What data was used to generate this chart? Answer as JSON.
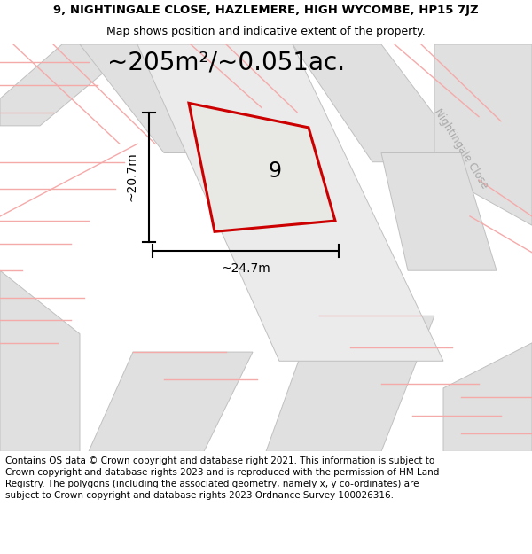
{
  "title_line1": "9, NIGHTINGALE CLOSE, HAZLEMERE, HIGH WYCOMBE, HP15 7JZ",
  "title_line2": "Map shows position and indicative extent of the property.",
  "area_text": "~205m²/~0.051ac.",
  "plot_number": "9",
  "dim_width": "~24.7m",
  "dim_height": "~20.7m",
  "street_label": "Nightingale Close",
  "footer_text": "Contains OS data © Crown copyright and database right 2021. This information is subject to Crown copyright and database rights 2023 and is reproduced with the permission of HM Land Registry. The polygons (including the associated geometry, namely x, y co-ordinates) are subject to Crown copyright and database rights 2023 Ordnance Survey 100026316.",
  "bg_color": "#f2f2ee",
  "road_fill": "#e0e0e0",
  "road_stroke": "#c0c0c0",
  "pink_line_color": "#f5aaaa",
  "red_plot_color": "#cc0000",
  "plot_fill": "#e8e8e4",
  "street_color": "#aaaaaa",
  "title_fontsize": 9.5,
  "subtitle_fontsize": 9.0,
  "area_fontsize": 20,
  "number_fontsize": 17,
  "dim_fontsize": 10,
  "street_fontsize": 8.5,
  "footer_fontsize": 7.5
}
